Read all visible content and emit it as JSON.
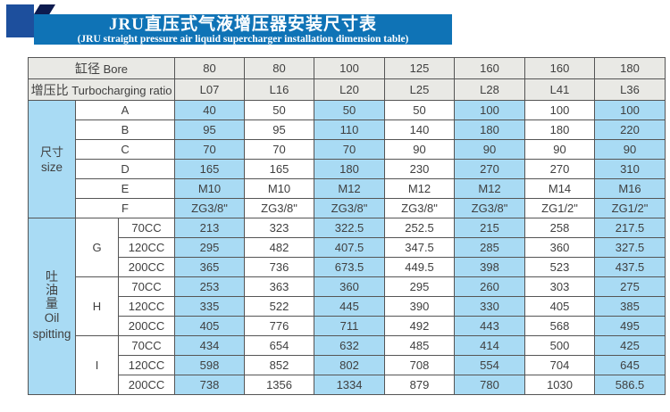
{
  "colors": {
    "banner_blue": "#0f73b6",
    "square_blue": "#1d4f9d",
    "fold_navy": "#0d1b4f",
    "header_gray": "#e9e9e5",
    "cell_blue": "#a9dbf4",
    "border_gray": "#555555",
    "text_dark": "#3f3f3f"
  },
  "banner": {
    "title": "JRU直压式气液增压器安装尺寸表",
    "subtitle": "(JRU straight pressure air liquid supercharger installation dimension table)"
  },
  "table": {
    "header_rows": [
      {
        "label_zh": "缸径",
        "label_en": "Bore",
        "values": [
          "80",
          "80",
          "100",
          "125",
          "160",
          "160",
          "180"
        ]
      },
      {
        "label_zh": "增压比",
        "label_en": "Turbocharging ratio",
        "values": [
          "L07",
          "L16",
          "L20",
          "L25",
          "L28",
          "L41",
          "L36"
        ]
      }
    ],
    "size_section": {
      "label_zh": "尺寸",
      "label_en": "size",
      "rows": [
        {
          "label": "A",
          "values": [
            "40",
            "50",
            "50",
            "50",
            "100",
            "100",
            "100"
          ]
        },
        {
          "label": "B",
          "values": [
            "95",
            "95",
            "110",
            "140",
            "180",
            "180",
            "220"
          ]
        },
        {
          "label": "C",
          "values": [
            "70",
            "70",
            "70",
            "90",
            "90",
            "90",
            "90"
          ]
        },
        {
          "label": "D",
          "values": [
            "165",
            "165",
            "180",
            "230",
            "270",
            "270",
            "310"
          ]
        },
        {
          "label": "E",
          "values": [
            "M10",
            "M10",
            "M12",
            "M12",
            "M12",
            "M14",
            "M16"
          ]
        },
        {
          "label": "F",
          "values": [
            "ZG3/8\"",
            "ZG3/8\"",
            "ZG3/8\"",
            "ZG3/8\"",
            "ZG3/8\"",
            "ZG1/2\"",
            "ZG1/2\""
          ]
        }
      ]
    },
    "oil_section": {
      "label_zh": "吐油量",
      "label_en": "Oil spitting",
      "groups": [
        {
          "label": "G",
          "rows": [
            {
              "label": "70CC",
              "values": [
                "213",
                "323",
                "322.5",
                "252.5",
                "215",
                "258",
                "217.5"
              ]
            },
            {
              "label": "120CC",
              "values": [
                "295",
                "482",
                "407.5",
                "347.5",
                "285",
                "360",
                "327.5"
              ]
            },
            {
              "label": "200CC",
              "values": [
                "365",
                "736",
                "673.5",
                "449.5",
                "398",
                "523",
                "437.5"
              ]
            }
          ]
        },
        {
          "label": "H",
          "rows": [
            {
              "label": "70CC",
              "values": [
                "253",
                "363",
                "360",
                "295",
                "260",
                "303",
                "275"
              ]
            },
            {
              "label": "120CC",
              "values": [
                "335",
                "522",
                "445",
                "390",
                "330",
                "405",
                "385"
              ]
            },
            {
              "label": "200CC",
              "values": [
                "405",
                "776",
                "711",
                "492",
                "443",
                "568",
                "495"
              ]
            }
          ]
        },
        {
          "label": "I",
          "rows": [
            {
              "label": "70CC",
              "values": [
                "434",
                "654",
                "632",
                "485",
                "414",
                "500",
                "425"
              ]
            },
            {
              "label": "120CC",
              "values": [
                "598",
                "852",
                "802",
                "708",
                "554",
                "704",
                "645"
              ]
            },
            {
              "label": "200CC",
              "values": [
                "738",
                "1356",
                "1334",
                "879",
                "780",
                "1030",
                "586.5"
              ]
            }
          ]
        }
      ]
    }
  }
}
